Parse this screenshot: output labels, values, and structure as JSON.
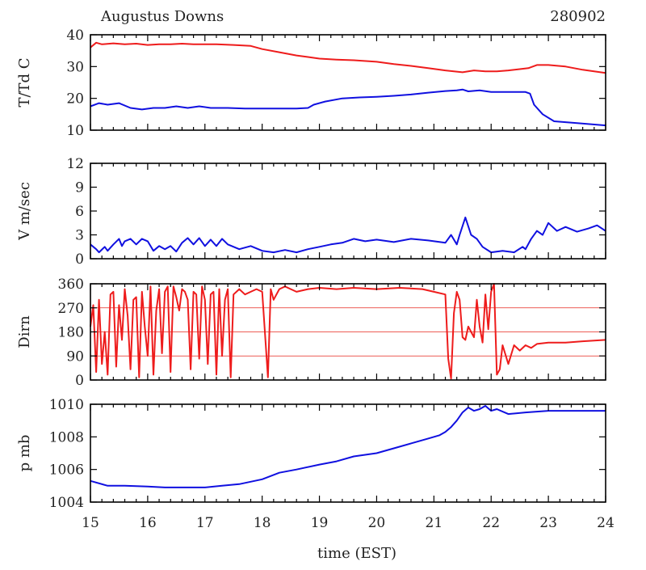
{
  "title": "Augustus Downs",
  "date": "280902",
  "chart_data": {
    "type": "line",
    "xlabel": "time (EST)",
    "xlim": [
      15,
      24
    ],
    "xticks": [
      "15",
      "16",
      "17",
      "18",
      "19",
      "20",
      "21",
      "22",
      "23",
      "24"
    ],
    "colors": {
      "red": "#ee1c1c",
      "blue": "#1010e0",
      "ref": "#e8281e"
    },
    "panels": [
      {
        "name": "temperature",
        "ylabel": "T/Td C",
        "ylim": [
          10,
          40
        ],
        "yticks": [
          "10",
          "20",
          "30",
          "40"
        ],
        "series": [
          {
            "name": "T",
            "color": "red",
            "x": [
              15.0,
              15.1,
              15.2,
              15.4,
              15.6,
              15.8,
              16.0,
              16.2,
              16.4,
              16.6,
              16.8,
              17.0,
              17.2,
              17.5,
              17.8,
              18.0,
              18.3,
              18.6,
              18.8,
              19.0,
              19.3,
              19.6,
              20.0,
              20.3,
              20.6,
              20.9,
              21.2,
              21.5,
              21.7,
              21.9,
              22.1,
              22.3,
              22.5,
              22.65,
              22.8,
              23.0,
              23.3,
              23.6,
              24.0
            ],
            "values": [
              36,
              37.5,
              37,
              37.3,
              37,
              37.2,
              36.8,
              37,
              37,
              37.2,
              37,
              37,
              37,
              36.8,
              36.5,
              35.5,
              34.5,
              33.5,
              33,
              32.5,
              32.2,
              32,
              31.5,
              30.8,
              30.2,
              29.5,
              28.8,
              28.2,
              28.8,
              28.5,
              28.5,
              28.8,
              29.2,
              29.5,
              30.5,
              30.5,
              30,
              29,
              28
            ]
          },
          {
            "name": "Td",
            "color": "blue",
            "x": [
              15.0,
              15.15,
              15.3,
              15.5,
              15.7,
              15.9,
              16.1,
              16.3,
              16.5,
              16.7,
              16.9,
              17.1,
              17.4,
              17.7,
              18.0,
              18.3,
              18.6,
              18.8,
              18.9,
              19.1,
              19.4,
              19.7,
              20.0,
              20.3,
              20.6,
              20.9,
              21.2,
              21.4,
              21.5,
              21.6,
              21.8,
              22.0,
              22.3,
              22.6,
              22.68,
              22.75,
              22.9,
              23.1,
              23.5,
              24.0
            ],
            "values": [
              17.5,
              18.5,
              18,
              18.5,
              17,
              16.5,
              17,
              17,
              17.5,
              17,
              17.5,
              17,
              17,
              16.8,
              16.8,
              16.8,
              16.8,
              17,
              18,
              19,
              20,
              20.3,
              20.5,
              20.8,
              21.2,
              21.8,
              22.3,
              22.5,
              22.8,
              22.2,
              22.5,
              22,
              22,
              22,
              21.5,
              18,
              15,
              12.8,
              12.2,
              11.5
            ]
          }
        ]
      },
      {
        "name": "wind-speed",
        "ylabel": "V m/sec",
        "ylim": [
          0,
          12
        ],
        "yticks": [
          "0",
          "3",
          "6",
          "9",
          "12"
        ],
        "series": [
          {
            "name": "V",
            "color": "blue",
            "x": [
              15.0,
              15.1,
              15.15,
              15.25,
              15.3,
              15.4,
              15.5,
              15.55,
              15.6,
              15.7,
              15.8,
              15.9,
              16.0,
              16.1,
              16.2,
              16.3,
              16.4,
              16.5,
              16.6,
              16.7,
              16.8,
              16.9,
              17.0,
              17.1,
              17.2,
              17.3,
              17.4,
              17.6,
              17.8,
              18.0,
              18.2,
              18.4,
              18.6,
              18.8,
              19.0,
              19.2,
              19.4,
              19.6,
              19.8,
              20.0,
              20.3,
              20.6,
              20.9,
              21.2,
              21.3,
              21.4,
              21.45,
              21.55,
              21.65,
              21.75,
              21.85,
              22.0,
              22.2,
              22.4,
              22.55,
              22.6,
              22.7,
              22.8,
              22.9,
              23.0,
              23.15,
              23.3,
              23.5,
              23.7,
              23.85,
              24.0
            ],
            "values": [
              1.8,
              1.2,
              0.8,
              1.5,
              1.0,
              1.8,
              2.5,
              1.6,
              2.2,
              2.5,
              1.8,
              2.5,
              2.2,
              1.0,
              1.6,
              1.2,
              1.6,
              0.9,
              2.0,
              2.6,
              1.8,
              2.6,
              1.6,
              2.4,
              1.6,
              2.5,
              1.8,
              1.2,
              1.6,
              1.0,
              0.8,
              1.1,
              0.8,
              1.2,
              1.5,
              1.8,
              2.0,
              2.5,
              2.2,
              2.4,
              2.1,
              2.5,
              2.3,
              2.0,
              3.0,
              1.8,
              3.0,
              5.2,
              3.0,
              2.5,
              1.5,
              0.8,
              1.0,
              0.8,
              1.5,
              1.2,
              2.5,
              3.5,
              3.0,
              4.5,
              3.5,
              4.0,
              3.4,
              3.8,
              4.2,
              3.5
            ]
          }
        ]
      },
      {
        "name": "direction",
        "ylabel": "Dirn",
        "ylim": [
          0,
          360
        ],
        "yticks": [
          "0",
          "90",
          "180",
          "270",
          "360"
        ],
        "reference_lines": [
          90,
          180,
          270
        ],
        "series": [
          {
            "name": "Dirn",
            "color": "red",
            "x": [
              15.0,
              15.05,
              15.1,
              15.15,
              15.2,
              15.25,
              15.3,
              15.35,
              15.4,
              15.45,
              15.5,
              15.55,
              15.6,
              15.65,
              15.7,
              15.75,
              15.8,
              15.85,
              15.9,
              15.95,
              16.0,
              16.05,
              16.1,
              16.15,
              16.2,
              16.25,
              16.3,
              16.35,
              16.4,
              16.45,
              16.5,
              16.55,
              16.6,
              16.65,
              16.7,
              16.75,
              16.8,
              16.85,
              16.9,
              16.95,
              17.0,
              17.05,
              17.1,
              17.15,
              17.2,
              17.25,
              17.3,
              17.35,
              17.4,
              17.45,
              17.5,
              17.55,
              17.6,
              17.7,
              17.8,
              17.9,
              18.0,
              18.1,
              18.15,
              18.2,
              18.3,
              18.4,
              18.5,
              18.6,
              18.8,
              19.0,
              19.3,
              19.6,
              20.0,
              20.4,
              20.8,
              21.0,
              21.2,
              21.25,
              21.3,
              21.35,
              21.4,
              21.45,
              21.5,
              21.55,
              21.6,
              21.65,
              21.7,
              21.75,
              21.8,
              21.85,
              21.9,
              21.95,
              22.0,
              22.05,
              22.1,
              22.15,
              22.2,
              22.3,
              22.4,
              22.5,
              22.6,
              22.7,
              22.8,
              23.0,
              23.3,
              23.6,
              24.0
            ],
            "values": [
              200,
              280,
              30,
              300,
              60,
              180,
              20,
              320,
              330,
              50,
              280,
              150,
              340,
              240,
              40,
              300,
              310,
              10,
              330,
              200,
              90,
              350,
              20,
              260,
              340,
              100,
              330,
              350,
              30,
              350,
              310,
              260,
              340,
              330,
              300,
              40,
              330,
              320,
              80,
              350,
              300,
              60,
              320,
              330,
              20,
              340,
              90,
              300,
              340,
              10,
              320,
              330,
              340,
              320,
              330,
              340,
              330,
              10,
              340,
              300,
              340,
              350,
              340,
              330,
              340,
              345,
              340,
              345,
              340,
              345,
              340,
              330,
              320,
              80,
              5,
              250,
              330,
              300,
              160,
              150,
              200,
              180,
              160,
              300,
              200,
              140,
              320,
              190,
              330,
              360,
              20,
              40,
              130,
              60,
              130,
              110,
              130,
              120,
              135,
              140,
              140,
              145,
              150
            ]
          }
        ]
      },
      {
        "name": "pressure",
        "ylabel": "p mb",
        "ylim": [
          1004,
          1010
        ],
        "yticks": [
          "1004",
          "1006",
          "1008",
          "1010"
        ],
        "series": [
          {
            "name": "p",
            "color": "blue",
            "x": [
              15.0,
              15.3,
              15.6,
              16.0,
              16.3,
              16.6,
              17.0,
              17.3,
              17.6,
              18.0,
              18.3,
              18.6,
              19.0,
              19.3,
              19.6,
              20.0,
              20.3,
              20.6,
              20.9,
              21.1,
              21.2,
              21.3,
              21.4,
              21.5,
              21.6,
              21.7,
              21.8,
              21.9,
              22.0,
              22.1,
              22.3,
              22.6,
              23.0,
              23.5,
              24.0
            ],
            "values": [
              1005.3,
              1005.0,
              1005.0,
              1004.95,
              1004.9,
              1004.9,
              1004.9,
              1005.0,
              1005.1,
              1005.4,
              1005.8,
              1006.0,
              1006.3,
              1006.5,
              1006.8,
              1007.0,
              1007.3,
              1007.6,
              1007.9,
              1008.1,
              1008.3,
              1008.6,
              1009.0,
              1009.5,
              1009.8,
              1009.6,
              1009.7,
              1009.9,
              1009.6,
              1009.7,
              1009.4,
              1009.5,
              1009.6,
              1009.6,
              1009.6
            ]
          }
        ]
      }
    ]
  }
}
